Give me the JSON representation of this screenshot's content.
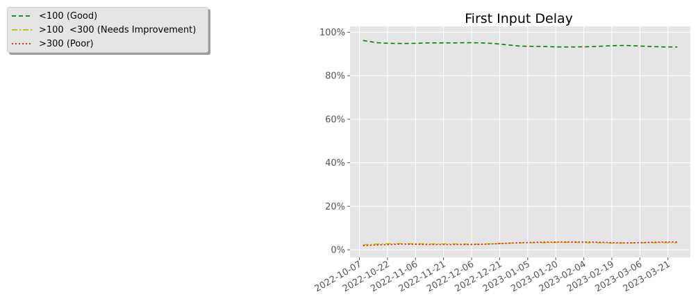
{
  "chart_data": {
    "type": "line",
    "title": "First Input Delay",
    "xlabel": "",
    "ylabel": "",
    "ylim": [
      0,
      100
    ],
    "y_ticks": [
      "0%",
      "20%",
      "40%",
      "60%",
      "80%",
      "100%"
    ],
    "x_ticks": [
      "2022-10-07",
      "2022-10-22",
      "2022-11-06",
      "2022-11-21",
      "2022-12-06",
      "2022-12-21",
      "2023-01-05",
      "2023-01-20",
      "2023-02-04",
      "2023-02-19",
      "2023-03-06",
      "2023-03-21"
    ],
    "x": [
      "2022-10-09",
      "2022-10-16",
      "2022-10-23",
      "2022-10-30",
      "2022-11-06",
      "2022-11-13",
      "2022-11-20",
      "2022-11-27",
      "2022-12-04",
      "2022-12-11",
      "2022-12-18",
      "2022-12-25",
      "2023-01-01",
      "2023-01-08",
      "2023-01-15",
      "2023-01-22",
      "2023-01-29",
      "2023-02-05",
      "2023-02-12",
      "2023-02-19",
      "2023-02-26",
      "2023-03-05",
      "2023-03-12",
      "2023-03-19",
      "2023-03-26"
    ],
    "series": [
      {
        "name": "<100 (Good)",
        "color": "#008000",
        "dash": "6,4",
        "values": [
          96.2,
          95.2,
          94.9,
          94.8,
          94.9,
          95.1,
          95.1,
          95.1,
          95.2,
          95.1,
          94.8,
          94.2,
          93.6,
          93.5,
          93.4,
          93.2,
          93.2,
          93.3,
          93.5,
          93.8,
          93.9,
          93.7,
          93.4,
          93.2,
          93.2
        ]
      },
      {
        "name": ">100  <300 (Needs Improvement)",
        "color": "#bfbf00",
        "dash": "8,3,2,3",
        "values": [
          2.3,
          2.6,
          2.8,
          2.8,
          2.8,
          2.7,
          2.7,
          2.7,
          2.6,
          2.6,
          2.8,
          3.0,
          3.2,
          3.3,
          3.3,
          3.4,
          3.4,
          3.3,
          3.2,
          3.1,
          3.1,
          3.2,
          3.3,
          3.3,
          3.3
        ]
      },
      {
        "name": ">300 (Poor)",
        "color": "#ff0000",
        "dash": "2,3",
        "values": [
          1.9,
          2.2,
          2.4,
          2.6,
          2.5,
          2.4,
          2.4,
          2.4,
          2.4,
          2.5,
          2.7,
          3.0,
          3.3,
          3.4,
          3.5,
          3.6,
          3.6,
          3.6,
          3.5,
          3.3,
          3.2,
          3.3,
          3.4,
          3.6,
          3.6
        ]
      }
    ],
    "grid": true,
    "legend_position": "top-left, outside plot"
  }
}
